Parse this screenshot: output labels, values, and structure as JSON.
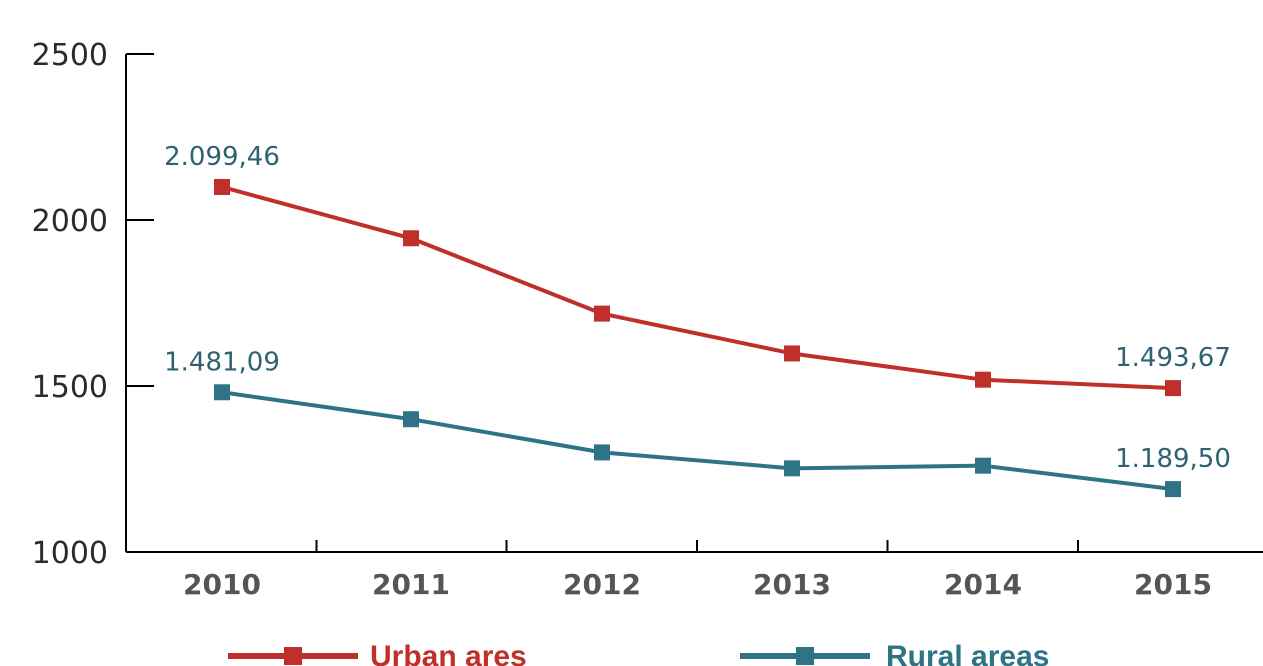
{
  "chart_data": {
    "type": "line",
    "title": "",
    "xlabel": "",
    "ylabel": "",
    "categories": [
      "2010",
      "2011",
      "2012",
      "2013",
      "2014",
      "2015"
    ],
    "ylim": [
      1000,
      2500
    ],
    "yticks": [
      "1000",
      "1500",
      "2000",
      "2500"
    ],
    "grid": false,
    "legend_position": "bottom",
    "series": [
      {
        "name": "Urban ares",
        "color": "#c0302a",
        "marker": "square",
        "values": [
          2099.46,
          1945,
          1718,
          1598,
          1519,
          1493.67
        ],
        "labels": [
          {
            "index": 0,
            "text": "2.099,46"
          },
          {
            "index": 5,
            "text": "1.493,67"
          }
        ]
      },
      {
        "name": "Rural areas",
        "color": "#2e7386",
        "marker": "square",
        "values": [
          1481.09,
          1400,
          1300,
          1252,
          1260,
          1189.5
        ],
        "labels": [
          {
            "index": 0,
            "text": "1.481,09"
          },
          {
            "index": 5,
            "text": "1.189,50"
          }
        ]
      }
    ]
  },
  "colors": {
    "axis": "#000000",
    "tick_y": "#2b2b2b",
    "tick_x": "#555555"
  }
}
